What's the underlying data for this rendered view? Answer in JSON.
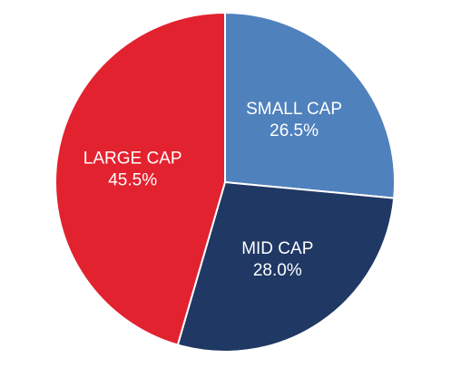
{
  "chart_data": {
    "type": "pie",
    "title": "",
    "slices": [
      {
        "label": "SMALL CAP",
        "value": 26.5,
        "value_label": "26.5%",
        "color": "#4f81bd"
      },
      {
        "label": "MID CAP",
        "value": 28.0,
        "value_label": "28.0%",
        "color": "#1f3864"
      },
      {
        "label": "LARGE CAP",
        "value": 45.5,
        "value_label": "45.5%",
        "color": "#e3222f"
      }
    ],
    "start_angle_deg": 0,
    "direction": "clockwise",
    "slice_border_color": "#ffffff",
    "legend": "none"
  }
}
